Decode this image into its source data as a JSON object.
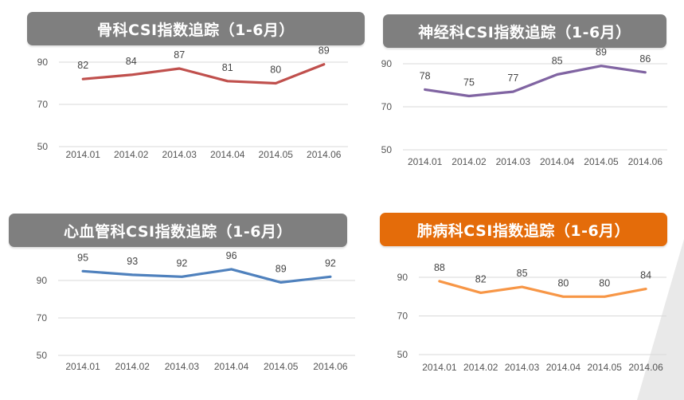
{
  "colors": {
    "title_bar_gray": "#7f7f7f",
    "title_bar_orange": "#e46c0a",
    "gridline": "#d9d9d9",
    "decor_shard": "#e9e9e9"
  },
  "chart_data": [
    {
      "type": "line",
      "title": "骨科CSI指数追踪（1-6月）",
      "categories": [
        "2014.01",
        "2014.02",
        "2014.03",
        "2014.04",
        "2014.05",
        "2014.06"
      ],
      "series": [
        {
          "values": [
            82,
            84,
            87,
            81,
            80,
            89
          ],
          "color": "#c0504d"
        }
      ],
      "yticks": [
        "50",
        "70",
        "90"
      ],
      "ylim": [
        50,
        100
      ],
      "grid": true,
      "title_color": "#7f7f7f"
    },
    {
      "type": "line",
      "title": "神经科CSI指数追踪（1-6月）",
      "categories": [
        "2014.01",
        "2014.02",
        "2014.03",
        "2014.04",
        "2014.05",
        "2014.06"
      ],
      "series": [
        {
          "values": [
            78,
            75,
            77,
            85,
            89,
            86
          ],
          "color": "#8064a2"
        }
      ],
      "yticks": [
        "50",
        "70",
        "90"
      ],
      "ylim": [
        50,
        100
      ],
      "grid": true,
      "title_color": "#7f7f7f"
    },
    {
      "type": "line",
      "title": "心血管科CSI指数追踪（1-6月）",
      "categories": [
        "2014.01",
        "2014.02",
        "2014.03",
        "2014.04",
        "2014.05",
        "2014.06"
      ],
      "series": [
        {
          "values": [
            95,
            93,
            92,
            96,
            89,
            92
          ],
          "color": "#4f81bd"
        }
      ],
      "yticks": [
        "50",
        "70",
        "90"
      ],
      "ylim": [
        50,
        100
      ],
      "grid": true,
      "title_color": "#7f7f7f"
    },
    {
      "type": "line",
      "title": "肺病科CSI指数追踪（1-6月）",
      "categories": [
        "2014.01",
        "2014.02",
        "2014.03",
        "2014.04",
        "2014.05",
        "2014.06"
      ],
      "series": [
        {
          "values": [
            88,
            82,
            85,
            80,
            80,
            84
          ],
          "color": "#f79646"
        }
      ],
      "yticks": [
        "50",
        "70",
        "90"
      ],
      "ylim": [
        50,
        100
      ],
      "grid": true,
      "title_color": "#e46c0a"
    }
  ]
}
